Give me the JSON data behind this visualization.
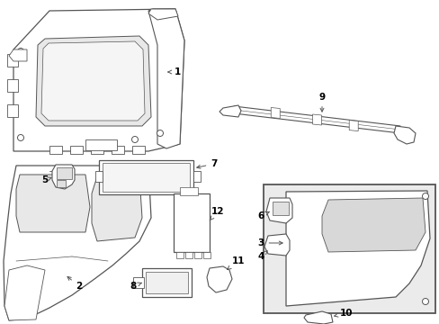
{
  "bg_color": "#ffffff",
  "line_color": "#555555",
  "fig_width": 4.89,
  "fig_height": 3.6,
  "dpi": 100
}
